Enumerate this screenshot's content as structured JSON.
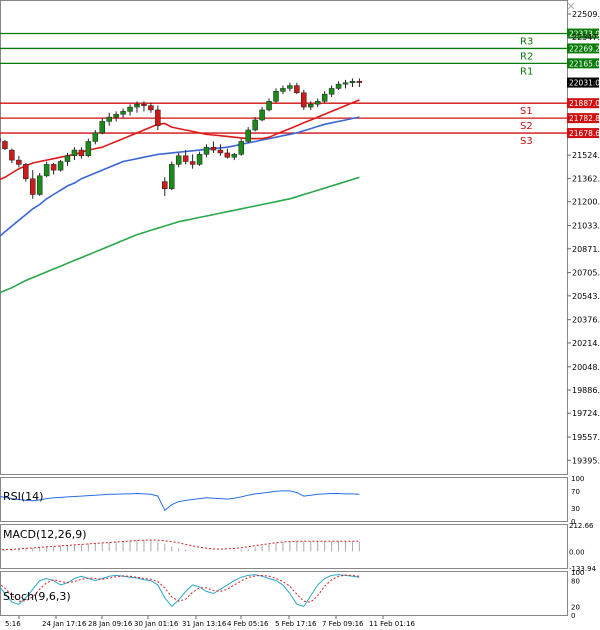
{
  "colors": {
    "bull": "#1b8a1b",
    "bear": "#cc1b1b",
    "ma_red": "#e01919",
    "ma_blue": "#3a66d6",
    "ma_green": "#2aa84a",
    "resistance": "#0a7a0a",
    "support": "#d01010",
    "rsi": "#2a6ee8",
    "macd": "#d62020",
    "stoch_k": "#2aa8c8",
    "stoch_d": "#d62020",
    "grid": "#999999"
  },
  "chart_data": {
    "type": "candlestick",
    "ylim": [
      19300,
      22600
    ],
    "y_ticks": [
      "22509.5",
      "22347.5",
      "21524.0",
      "21362.0",
      "21200.0",
      "21033.5",
      "20871.5",
      "20705.0",
      "20543.0",
      "20376.5",
      "20214.5",
      "20048.0",
      "19886.0",
      "19724.0",
      "19557.5",
      "19395.5"
    ],
    "current_price": "22031.0",
    "x_labels": [
      "5:16",
      "24 Jan 17:16",
      "28 Jan 09:16",
      "30 Jan 01:16",
      "31 Jan 13:16",
      "4 Feb 05:16",
      "5 Feb 17:16",
      "7 Feb 09:16",
      "11 Feb 01:16"
    ],
    "levels": [
      {
        "name": "R3",
        "value": 22373.0,
        "label": "22373.0",
        "kind": "resistance"
      },
      {
        "name": "R2",
        "value": 22269.2,
        "label": "22269.2",
        "kind": "resistance"
      },
      {
        "name": "R1",
        "value": 22165.0,
        "label": "22165.0",
        "kind": "resistance"
      },
      {
        "name": "S1",
        "value": 21887.0,
        "label": "21887.0",
        "kind": "support"
      },
      {
        "name": "S2",
        "value": 21782.8,
        "label": "21782.8",
        "kind": "support"
      },
      {
        "name": "S3",
        "value": 21678.6,
        "label": "21678.6",
        "kind": "support"
      }
    ],
    "series_candles": [
      {
        "o": 21640,
        "h": 21660,
        "l": 21590,
        "c": 21620
      },
      {
        "o": 21620,
        "h": 21630,
        "l": 21560,
        "c": 21570
      },
      {
        "o": 21560,
        "h": 21570,
        "l": 21470,
        "c": 21490
      },
      {
        "o": 21490,
        "h": 21520,
        "l": 21440,
        "c": 21460
      },
      {
        "o": 21460,
        "h": 21470,
        "l": 21340,
        "c": 21360
      },
      {
        "o": 21360,
        "h": 21420,
        "l": 21220,
        "c": 21250
      },
      {
        "o": 21250,
        "h": 21400,
        "l": 21240,
        "c": 21380
      },
      {
        "o": 21380,
        "h": 21480,
        "l": 21370,
        "c": 21460
      },
      {
        "o": 21460,
        "h": 21470,
        "l": 21390,
        "c": 21420
      },
      {
        "o": 21420,
        "h": 21490,
        "l": 21410,
        "c": 21480
      },
      {
        "o": 21480,
        "h": 21540,
        "l": 21450,
        "c": 21520
      },
      {
        "o": 21520,
        "h": 21580,
        "l": 21490,
        "c": 21560
      },
      {
        "o": 21560,
        "h": 21580,
        "l": 21500,
        "c": 21520
      },
      {
        "o": 21520,
        "h": 21640,
        "l": 21510,
        "c": 21620
      },
      {
        "o": 21620,
        "h": 21700,
        "l": 21600,
        "c": 21680
      },
      {
        "o": 21680,
        "h": 21780,
        "l": 21670,
        "c": 21760
      },
      {
        "o": 21760,
        "h": 21820,
        "l": 21730,
        "c": 21790
      },
      {
        "o": 21790,
        "h": 21830,
        "l": 21760,
        "c": 21810
      },
      {
        "o": 21810,
        "h": 21850,
        "l": 21780,
        "c": 21830
      },
      {
        "o": 21830,
        "h": 21880,
        "l": 21800,
        "c": 21860
      },
      {
        "o": 21860,
        "h": 21900,
        "l": 21820,
        "c": 21880
      },
      {
        "o": 21880,
        "h": 21900,
        "l": 21830,
        "c": 21870
      },
      {
        "o": 21870,
        "h": 21890,
        "l": 21820,
        "c": 21840
      },
      {
        "o": 21840,
        "h": 21870,
        "l": 21700,
        "c": 21730
      },
      {
        "o": 21340,
        "h": 21370,
        "l": 21240,
        "c": 21290
      },
      {
        "o": 21290,
        "h": 21480,
        "l": 21280,
        "c": 21460
      },
      {
        "o": 21460,
        "h": 21540,
        "l": 21440,
        "c": 21520
      },
      {
        "o": 21520,
        "h": 21560,
        "l": 21460,
        "c": 21480
      },
      {
        "o": 21480,
        "h": 21530,
        "l": 21430,
        "c": 21460
      },
      {
        "o": 21460,
        "h": 21550,
        "l": 21450,
        "c": 21530
      },
      {
        "o": 21530,
        "h": 21600,
        "l": 21510,
        "c": 21580
      },
      {
        "o": 21580,
        "h": 21620,
        "l": 21540,
        "c": 21560
      },
      {
        "o": 21560,
        "h": 21600,
        "l": 21520,
        "c": 21540
      },
      {
        "o": 21540,
        "h": 21570,
        "l": 21500,
        "c": 21510
      },
      {
        "o": 21510,
        "h": 21540,
        "l": 21490,
        "c": 21530
      },
      {
        "o": 21530,
        "h": 21640,
        "l": 21520,
        "c": 21620
      },
      {
        "o": 21620,
        "h": 21720,
        "l": 21610,
        "c": 21700
      },
      {
        "o": 21700,
        "h": 21790,
        "l": 21690,
        "c": 21770
      },
      {
        "o": 21770,
        "h": 21860,
        "l": 21760,
        "c": 21840
      },
      {
        "o": 21840,
        "h": 21920,
        "l": 21830,
        "c": 21900
      },
      {
        "o": 21900,
        "h": 21990,
        "l": 21890,
        "c": 21970
      },
      {
        "o": 21970,
        "h": 22010,
        "l": 21950,
        "c": 21990
      },
      {
        "o": 21990,
        "h": 22030,
        "l": 21970,
        "c": 22010
      },
      {
        "o": 22010,
        "h": 22030,
        "l": 21950,
        "c": 21960
      },
      {
        "o": 21960,
        "h": 21980,
        "l": 21840,
        "c": 21860
      },
      {
        "o": 21860,
        "h": 21900,
        "l": 21840,
        "c": 21880
      },
      {
        "o": 21880,
        "h": 21920,
        "l": 21860,
        "c": 21900
      },
      {
        "o": 21900,
        "h": 21970,
        "l": 21890,
        "c": 21950
      },
      {
        "o": 21950,
        "h": 22010,
        "l": 21930,
        "c": 21990
      },
      {
        "o": 21990,
        "h": 22040,
        "l": 21980,
        "c": 22020
      },
      {
        "o": 22020,
        "h": 22050,
        "l": 21990,
        "c": 22030
      },
      {
        "o": 22030,
        "h": 22060,
        "l": 22000,
        "c": 22040
      },
      {
        "o": 22040,
        "h": 22060,
        "l": 22000,
        "c": 22031
      }
    ],
    "ma_red": [
      21350,
      21370,
      21400,
      21430,
      21450,
      21470,
      21480,
      21490,
      21500,
      21510,
      21520,
      21530,
      21545,
      21560,
      21570,
      21580,
      21600,
      21620,
      21640,
      21660,
      21680,
      21700,
      21720,
      21740,
      21745,
      21720,
      21710,
      21700,
      21690,
      21680,
      21670,
      21665,
      21660,
      21655,
      21650,
      21645,
      21640,
      21640,
      21640,
      21650,
      21670,
      21690,
      21710,
      21730,
      21750,
      21770,
      21790,
      21810,
      21830,
      21850,
      21870,
      21890,
      21910
    ],
    "ma_blue": [
      20950,
      20990,
      21030,
      21070,
      21110,
      21150,
      21180,
      21220,
      21250,
      21280,
      21310,
      21330,
      21360,
      21380,
      21400,
      21420,
      21440,
      21460,
      21480,
      21490,
      21500,
      21510,
      21520,
      21530,
      21535,
      21540,
      21545,
      21550,
      21555,
      21560,
      21565,
      21570,
      21575,
      21580,
      21590,
      21600,
      21610,
      21620,
      21630,
      21640,
      21650,
      21660,
      21670,
      21680,
      21695,
      21710,
      21725,
      21740,
      21750,
      21760,
      21770,
      21780,
      21790
    ],
    "ma_green": [
      20560,
      20580,
      20600,
      20625,
      20650,
      20670,
      20690,
      20710,
      20730,
      20750,
      20770,
      20790,
      20810,
      20830,
      20850,
      20870,
      20890,
      20910,
      20930,
      20950,
      20970,
      20985,
      21000,
      21015,
      21030,
      21045,
      21060,
      21070,
      21080,
      21090,
      21100,
      21110,
      21120,
      21130,
      21140,
      21150,
      21160,
      21170,
      21180,
      21190,
      21200,
      21210,
      21220,
      21235,
      21250,
      21265,
      21280,
      21295,
      21310,
      21325,
      21340,
      21355,
      21370
    ],
    "rsi": {
      "label": "RSI(14)",
      "ticks": [
        "100",
        "70",
        "30",
        "0"
      ],
      "values": [
        58,
        55,
        52,
        50,
        48,
        47,
        49,
        52,
        54,
        55,
        56,
        57,
        58,
        59,
        60,
        61,
        62,
        62,
        63,
        63,
        64,
        63,
        62,
        58,
        25,
        38,
        45,
        48,
        50,
        52,
        54,
        53,
        52,
        51,
        53,
        56,
        60,
        63,
        65,
        67,
        69,
        70,
        70,
        66,
        58,
        60,
        62,
        63,
        64,
        64,
        63,
        63,
        62
      ]
    },
    "macd": {
      "label": "MACD(12,26,9)",
      "ticks": [
        "212.66",
        "0.00",
        "-133.94"
      ],
      "hist": [
        10,
        14,
        18,
        22,
        26,
        30,
        34,
        38,
        42,
        46,
        50,
        54,
        58,
        62,
        66,
        70,
        74,
        78,
        82,
        86,
        90,
        92,
        90,
        80,
        60,
        40,
        25,
        15,
        8,
        4,
        2,
        1,
        2,
        4,
        8,
        14,
        22,
        32,
        44,
        56,
        66,
        74,
        80,
        82,
        80,
        78,
        78,
        80,
        82,
        82,
        80,
        78,
        76
      ],
      "signal": [
        12,
        14,
        16,
        20,
        24,
        28,
        32,
        36,
        40,
        44,
        48,
        52,
        56,
        60,
        64,
        68,
        72,
        76,
        80,
        84,
        88,
        90,
        92,
        90,
        86,
        78,
        68,
        56,
        44,
        34,
        26,
        20,
        18,
        20,
        24,
        30,
        38,
        46,
        54,
        62,
        70,
        76,
        80,
        82,
        82,
        82,
        82,
        82,
        82,
        82,
        82,
        82,
        82
      ]
    },
    "stoch": {
      "label": "Stoch(9,6,3)",
      "ticks": [
        "100",
        "80",
        "20",
        "0"
      ],
      "k": [
        70,
        50,
        30,
        25,
        40,
        60,
        80,
        85,
        80,
        70,
        75,
        85,
        90,
        85,
        80,
        85,
        90,
        92,
        90,
        88,
        86,
        82,
        80,
        70,
        40,
        20,
        35,
        55,
        70,
        65,
        55,
        50,
        60,
        70,
        80,
        88,
        92,
        94,
        90,
        85,
        80,
        70,
        50,
        25,
        20,
        45,
        70,
        85,
        92,
        94,
        92,
        90,
        88
      ],
      "d": [
        75,
        62,
        45,
        32,
        33,
        42,
        60,
        75,
        82,
        78,
        75,
        78,
        83,
        86,
        85,
        83,
        86,
        89,
        91,
        90,
        88,
        85,
        83,
        78,
        63,
        42,
        32,
        37,
        53,
        63,
        63,
        57,
        55,
        60,
        70,
        79,
        87,
        91,
        92,
        90,
        85,
        78,
        67,
        48,
        32,
        30,
        45,
        67,
        82,
        90,
        93,
        92,
        90
      ]
    }
  }
}
